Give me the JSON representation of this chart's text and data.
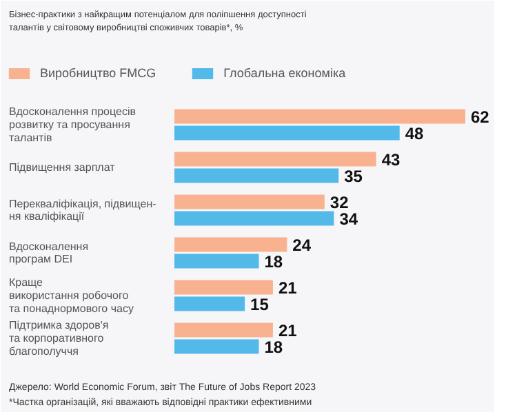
{
  "chart_data": {
    "type": "bar",
    "orientation": "horizontal",
    "title": "Бізнес-практики з найкращим потенціалом для поліпшення доступності\nталантів у світовому виробництві споживчих товарів*, %",
    "categories": [
      "Вдосконалення процесів\nрозвитку та просування\nталантів",
      "Підвищення зарплат",
      "Перекваліфікація, підвищен-\nня кваліфікації",
      "Вдосконалення\nпрограм DEI",
      "Краще\nвикористання робочого\nта понаднормового часу",
      "Підтримка здоров'я\nта корпоративного\nблагополуччя"
    ],
    "series": [
      {
        "name": "Виробництво FMCG",
        "color": "#f8b290",
        "values": [
          62,
          43,
          32,
          24,
          21,
          21
        ]
      },
      {
        "name": "Глобальна економіка",
        "color": "#53b9e8",
        "values": [
          48,
          35,
          34,
          18,
          15,
          18
        ]
      }
    ],
    "data_labels": true,
    "legend": "top left",
    "grid": false,
    "annotations": [
      "Джерело: World Economic Forum, звіт The Future of Jobs Report 2023",
      "*Частка організацій, які вважають відповідні практики ефективними"
    ]
  }
}
